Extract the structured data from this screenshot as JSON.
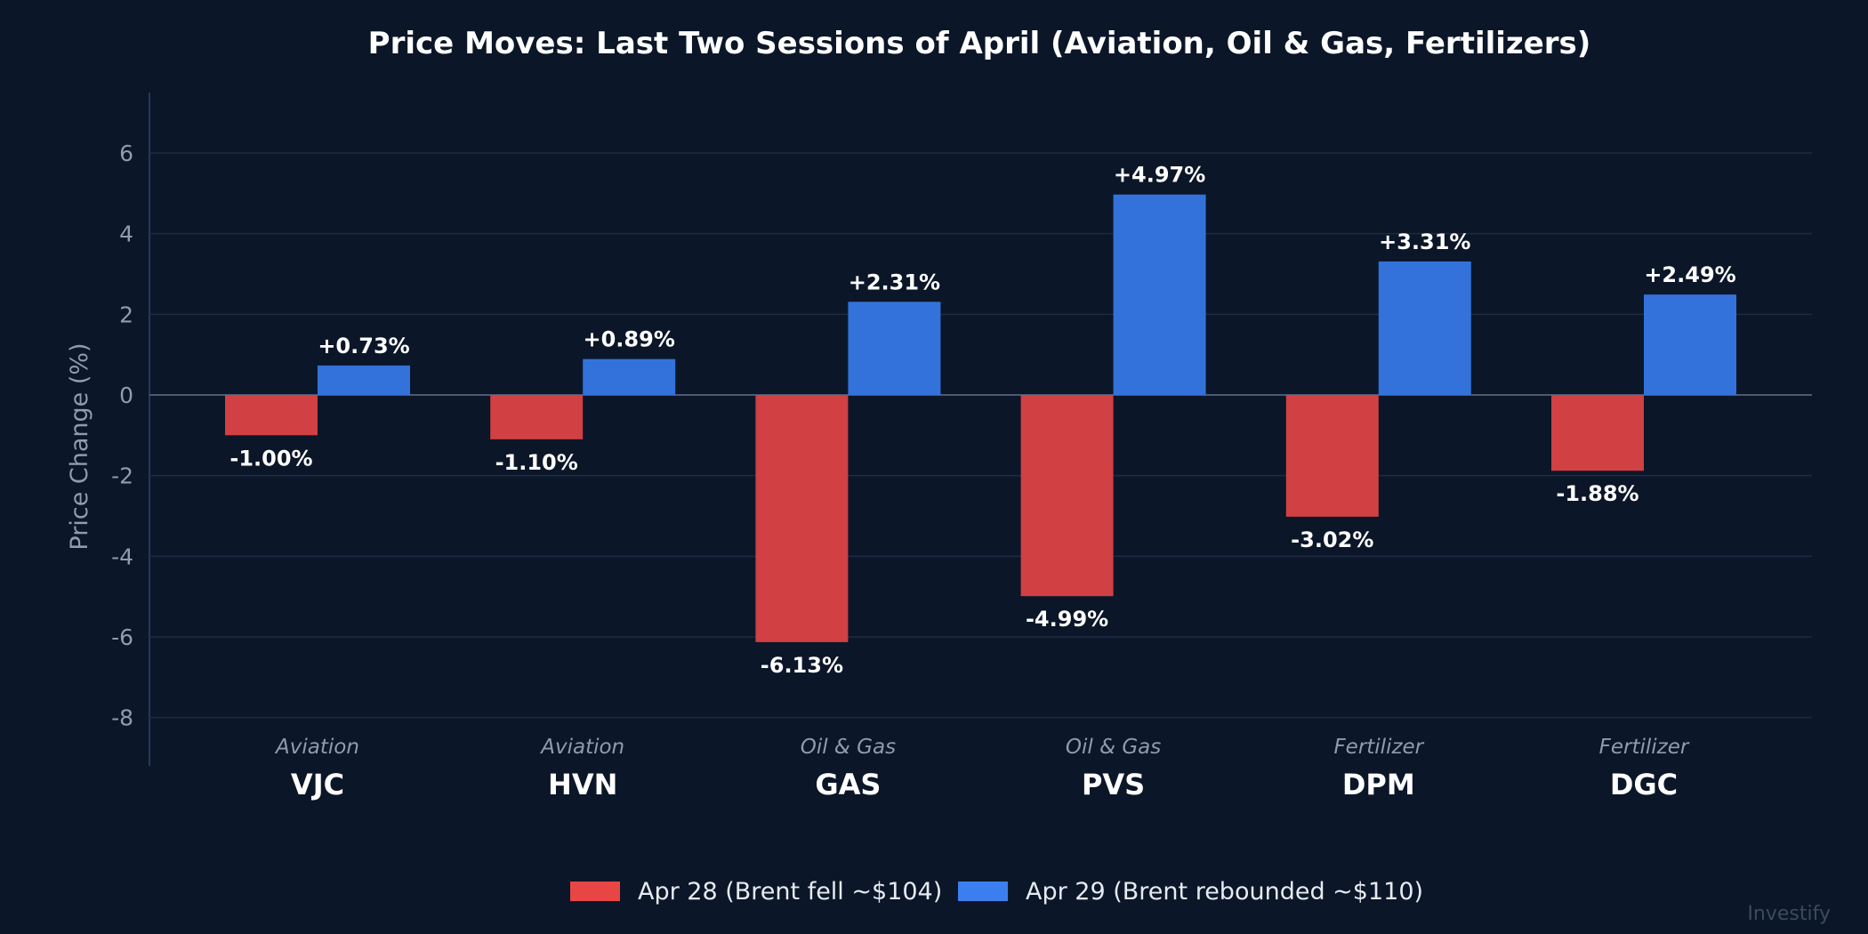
{
  "chart_data": {
    "type": "bar",
    "title": "Price Moves: Last Two Sessions of April (Aviation, Oil & Gas, Fertilizers)",
    "ylabel": "Price Change (%)",
    "ylim": [
      -9.2,
      7.5
    ],
    "yticks": [
      6,
      4,
      2,
      0,
      -2,
      -4,
      -6,
      -8
    ],
    "grid": true,
    "legend_position": "bottom-center",
    "categories": [
      "VJC",
      "HVN",
      "GAS",
      "PVS",
      "DPM",
      "DGC"
    ],
    "sectors": [
      "Aviation",
      "Aviation",
      "Oil & Gas",
      "Oil & Gas",
      "Fertilizer",
      "Fertilizer"
    ],
    "series": [
      {
        "name": "Apr 28 (Brent fell ~$104)",
        "color": "#d14043",
        "legend_color": "#e84545",
        "values": [
          -1.0,
          -1.1,
          -6.13,
          -4.99,
          -3.02,
          -1.88
        ],
        "labels": [
          "-1.00%",
          "-1.10%",
          "-6.13%",
          "-4.99%",
          "-3.02%",
          "-1.88%"
        ]
      },
      {
        "name": "Apr 29 (Brent rebounded ~$110)",
        "color": "#3372db",
        "legend_color": "#3b7fef",
        "values": [
          0.73,
          0.89,
          2.31,
          4.97,
          3.31,
          2.49
        ],
        "labels": [
          "+0.73%",
          "+0.89%",
          "+2.31%",
          "+4.97%",
          "+3.31%",
          "+2.49%"
        ]
      }
    ],
    "watermark": "Investify"
  }
}
